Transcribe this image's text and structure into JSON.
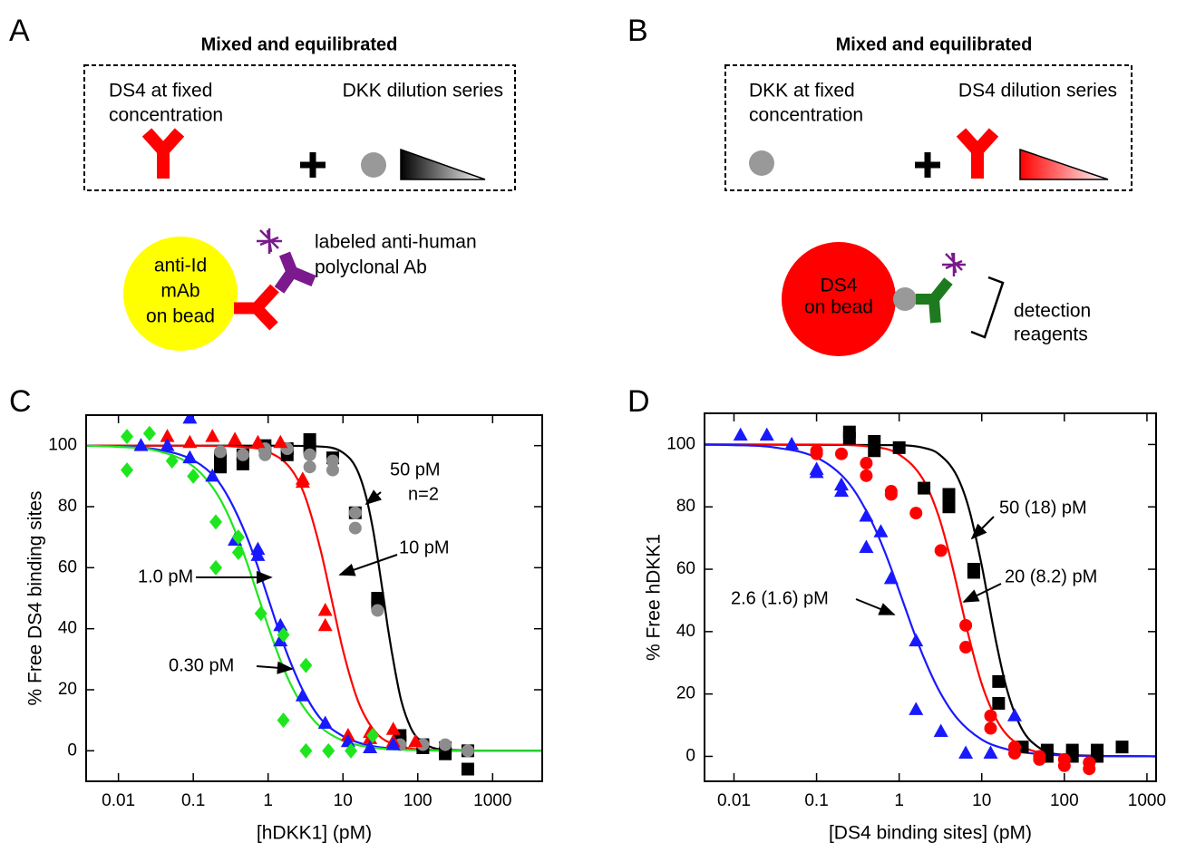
{
  "diagrams": [
    {
      "label": "A",
      "title": "Mixed and equilibrated",
      "fixed": [
        "DS4 at fixed",
        "concentration"
      ],
      "series": "DKK dilution series",
      "bead": [
        "anti-Id",
        "mAb",
        "on bead"
      ],
      "detection": [
        "labeled anti-human",
        "polyclonal Ab"
      ]
    },
    {
      "label": "B",
      "title": "Mixed and equilibrated",
      "fixed": [
        "DKK at fixed",
        "concentration"
      ],
      "series": "DS4 dilution series",
      "bead": [
        "DS4",
        "on bead"
      ],
      "detection": [
        "detection",
        "reagents"
      ]
    }
  ],
  "chart_data": [
    {
      "type": "scatter",
      "label": "C",
      "x_label": "[hDKK1] (pM)",
      "y_label": "% Free DS4 binding sites",
      "xscale": "log",
      "xlim": [
        0.0037,
        4600
      ],
      "xticks": [
        0.01,
        0.1,
        1,
        10,
        100,
        1000
      ],
      "ylim": [
        -10,
        110
      ],
      "yticks": [
        0,
        20,
        40,
        60,
        80,
        100
      ],
      "annotations": [
        "50 pM",
        "n=2",
        "10 pM",
        "1.0 pM",
        "0.30 pM"
      ],
      "series": [
        {
          "marker": "square",
          "color": "#000000",
          "x": [
            0.23,
            0.23,
            0.46,
            0.46,
            0.91,
            1.8,
            1.8,
            3.6,
            3.6,
            7.3,
            14.6,
            29,
            29,
            58,
            58,
            117,
            117,
            233,
            233,
            466,
            466
          ],
          "values": [
            93,
            96,
            97,
            94,
            100,
            99,
            97,
            102,
            99,
            96,
            78,
            50,
            48,
            5,
            3,
            2,
            1,
            1,
            -1,
            0,
            -6
          ]
        },
        {
          "marker": "circle",
          "color": "#8c8c8c",
          "x": [
            0.23,
            0.46,
            0.91,
            0.91,
            1.8,
            3.6,
            3.6,
            7.3,
            7.3,
            14.6,
            14.6,
            29,
            58,
            117,
            233,
            466
          ],
          "values": [
            98,
            97,
            99,
            97,
            99,
            97,
            93,
            92,
            95,
            78,
            73,
            46,
            2,
            2,
            2,
            0
          ]
        },
        {
          "marker": "triangle",
          "color": "#ff0000",
          "x": [
            0.045,
            0.09,
            0.18,
            0.36,
            0.73,
            1.46,
            2.9,
            2.9,
            5.8,
            5.8,
            11.7,
            23,
            23,
            47,
            47,
            93
          ],
          "values": [
            103,
            101,
            103,
            102,
            101,
            101,
            88,
            89,
            46,
            41,
            5,
            4,
            6,
            3,
            7,
            3
          ]
        },
        {
          "marker": "triangle",
          "color": "#1919ff",
          "x": [
            0.02,
            0.045,
            0.09,
            0.09,
            0.18,
            0.36,
            0.73,
            0.73,
            1.46,
            1.46,
            2.9,
            5.8,
            11.7,
            23,
            47
          ],
          "values": [
            100,
            100,
            109,
            96,
            90,
            69,
            66,
            64,
            41,
            36,
            18,
            9,
            3,
            1,
            2
          ]
        },
        {
          "marker": "diamond",
          "color": "#1ee61e",
          "x": [
            0.013,
            0.013,
            0.026,
            0.052,
            0.1,
            0.2,
            0.2,
            0.4,
            0.4,
            0.8,
            1.6,
            1.6,
            3.2,
            3.2,
            6.4,
            12.8,
            25
          ],
          "values": [
            103,
            92,
            104,
            95,
            90,
            75,
            60,
            65,
            70,
            45,
            38,
            10,
            28,
            0,
            0,
            0,
            5
          ]
        }
      ],
      "fits": [
        {
          "color": "#000000",
          "x": [
            0.0037,
            1,
            5,
            10,
            15,
            20,
            25,
            30,
            35,
            40,
            50,
            60,
            80,
            100,
            200,
            1000,
            4600
          ],
          "values": [
            100,
            100,
            99.7,
            97.7,
            92.7,
            84,
            73,
            61,
            50,
            40,
            26,
            16.5,
            7.7,
            4.1,
            0.5,
            0,
            0
          ]
        },
        {
          "color": "#ff0000",
          "x": [
            0.0037,
            0.1,
            0.5,
            1,
            2,
            3,
            5,
            7,
            10,
            15,
            20,
            30,
            50,
            100,
            1000,
            4600
          ],
          "values": [
            100,
            100,
            99.5,
            98,
            92.5,
            84.5,
            66,
            50,
            33,
            18,
            11,
            5,
            2,
            0.5,
            0,
            0
          ]
        },
        {
          "color": "#1919ff",
          "x": [
            0.0037,
            0.01,
            0.03,
            0.1,
            0.2,
            0.3,
            0.5,
            0.7,
            1,
            1.5,
            2,
            3,
            5,
            10,
            20,
            50,
            100,
            1000,
            4600
          ],
          "values": [
            100,
            99.7,
            98.9,
            95.2,
            89.3,
            82.7,
            71.1,
            61.5,
            50,
            37,
            28.9,
            19.2,
            10.6,
            4.8,
            2,
            0.6,
            0.25,
            0,
            0
          ]
        },
        {
          "color": "#1ee61e",
          "x": [
            0.0037,
            0.01,
            0.03,
            0.1,
            0.2,
            0.3,
            0.5,
            0.75,
            1,
            1.5,
            2,
            3,
            5,
            10,
            20,
            100,
            1000,
            4600
          ],
          "values": [
            100,
            99.6,
            98.5,
            93.2,
            84.8,
            76.7,
            62.9,
            50,
            40.8,
            28.9,
            21.8,
            14.2,
            7.8,
            3.3,
            1.4,
            0.2,
            0,
            0
          ]
        }
      ]
    },
    {
      "type": "scatter",
      "label": "D",
      "x_label": "[DS4 binding sites] (pM)",
      "y_label": "% Free hDKK1",
      "xscale": "log",
      "xlim": [
        0.0044,
        1290
      ],
      "xticks": [
        0.01,
        0.1,
        1,
        10,
        100,
        1000
      ],
      "ylim": [
        -8,
        110
      ],
      "yticks": [
        0,
        20,
        40,
        60,
        80,
        100
      ],
      "annotations": [
        "50 (18) pM",
        "20 (8.2) pM",
        "2.6 (1.6) pM"
      ],
      "series": [
        {
          "marker": "square",
          "color": "#000000",
          "x": [
            0.25,
            0.25,
            0.5,
            0.5,
            1,
            2,
            4,
            4,
            8,
            8,
            16,
            16,
            31,
            62,
            62,
            125,
            125,
            250,
            250,
            500
          ],
          "values": [
            104,
            102,
            101,
            98,
            99,
            86,
            84,
            80,
            60,
            59,
            24,
            17,
            3,
            2,
            0,
            2,
            0,
            2,
            0,
            3
          ]
        },
        {
          "marker": "circle",
          "color": "#ff0000",
          "x": [
            0.1,
            0.1,
            0.2,
            0.4,
            0.4,
            0.8,
            0.8,
            1.6,
            3.2,
            6.4,
            6.4,
            12.8,
            12.8,
            25,
            25,
            50,
            50,
            100,
            100,
            200,
            200
          ],
          "values": [
            98,
            97,
            97,
            94,
            90,
            84,
            85,
            78,
            66,
            42,
            35,
            13,
            9,
            1,
            3,
            0,
            -1,
            -3,
            -1,
            -2,
            -4
          ]
        },
        {
          "marker": "triangle",
          "color": "#1919ff",
          "x": [
            0.012,
            0.025,
            0.05,
            0.1,
            0.1,
            0.2,
            0.2,
            0.4,
            0.4,
            0.6,
            0.8,
            1.6,
            1.6,
            3.2,
            6.4,
            12.8,
            25
          ],
          "values": [
            103,
            103,
            100,
            91,
            92,
            87,
            85,
            77,
            67,
            72,
            57,
            37,
            15,
            8,
            1,
            1,
            13
          ]
        }
      ],
      "fits": [
        {
          "color": "#000000",
          "x": [
            0.0044,
            1,
            2,
            3,
            5,
            7,
            10,
            12,
            15,
            20,
            30,
            50,
            100,
            1290
          ],
          "values": [
            100,
            99.8,
            98.9,
            97,
            89.9,
            79.4,
            61.2,
            50,
            36.4,
            21.8,
            9.2,
            2.7,
            0.5,
            0
          ]
        },
        {
          "color": "#ff0000",
          "x": [
            0.0044,
            0.1,
            0.5,
            1,
            2,
            3,
            4,
            5.5,
            7,
            10,
            15,
            20,
            30,
            50,
            100,
            1290
          ],
          "values": [
            100,
            99.97,
            99.2,
            96.8,
            88.3,
            77.1,
            65.4,
            50,
            38.2,
            23.2,
            11.9,
            7,
            3.3,
            1.2,
            0.3,
            0
          ]
        },
        {
          "color": "#1919ff",
          "x": [
            0.0044,
            0.01,
            0.03,
            0.1,
            0.2,
            0.3,
            0.5,
            0.7,
            1.1,
            1.5,
            2,
            3,
            5,
            10,
            20,
            50,
            100,
            1290
          ],
          "values": [
            99.9,
            99.8,
            99.1,
            95.8,
            90.2,
            84.4,
            73.5,
            64.3,
            50,
            40,
            31.5,
            21.4,
            12.3,
            5.4,
            2.3,
            0.7,
            0.3,
            0
          ]
        }
      ]
    }
  ]
}
